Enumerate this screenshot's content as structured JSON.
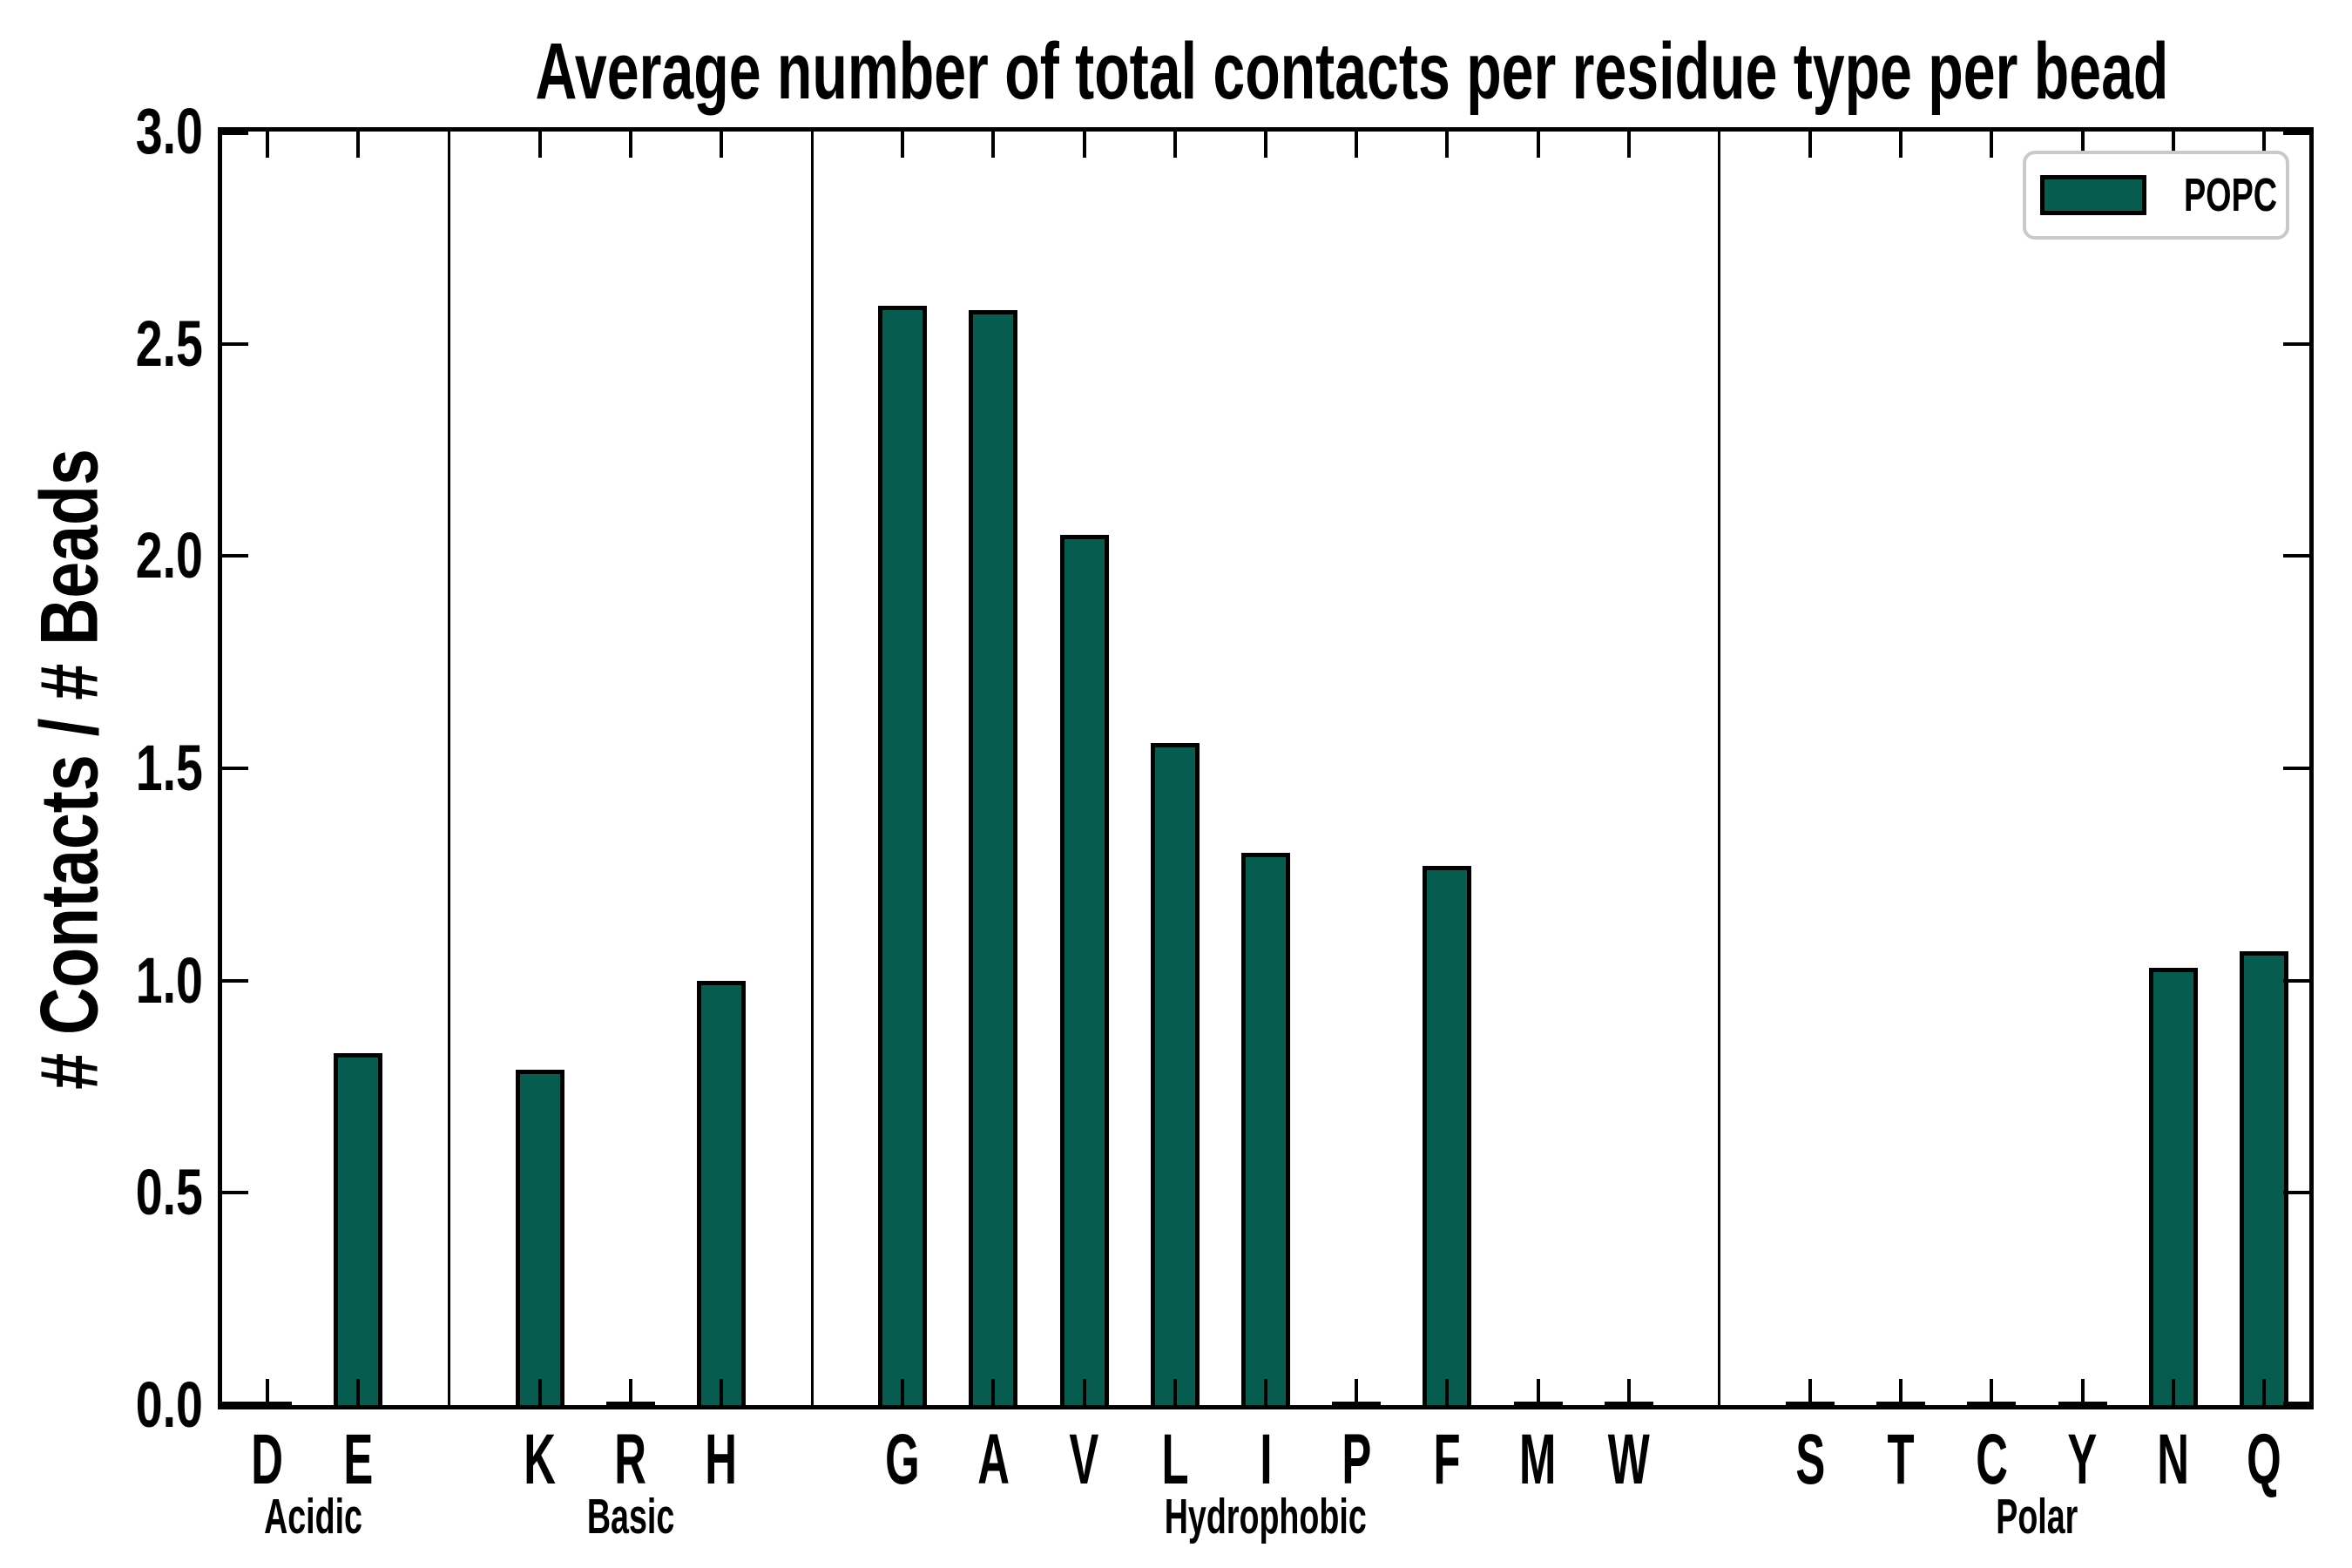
{
  "chart_data": {
    "type": "bar",
    "title": "Average number of total contacts per residue type per bead",
    "ylabel": "# Contacts / # Beads",
    "xlabel": "",
    "ylim": [
      0.0,
      3.0
    ],
    "ytick_labels": [
      "0.0",
      "0.5",
      "1.0",
      "1.5",
      "2.0",
      "2.5",
      "3.0"
    ],
    "grid": false,
    "legend_position": "upper right",
    "categories": [
      "D",
      "E",
      "K",
      "R",
      "H",
      "G",
      "A",
      "V",
      "L",
      "I",
      "P",
      "F",
      "M",
      "W",
      "S",
      "T",
      "C",
      "Y",
      "N",
      "Q"
    ],
    "series": [
      {
        "name": "POPC",
        "values": [
          0.005,
          0.83,
          0.79,
          0.005,
          1.0,
          2.59,
          2.58,
          2.05,
          1.56,
          1.3,
          0.005,
          1.27,
          0.005,
          0.005,
          0.005,
          0.005,
          0.005,
          0.005,
          1.03,
          1.07
        ]
      }
    ],
    "groups": [
      {
        "label": "Acidic",
        "categories": [
          "D",
          "E"
        ]
      },
      {
        "label": "Basic",
        "categories": [
          "K",
          "R",
          "H"
        ]
      },
      {
        "label": "Hydrophobic",
        "categories": [
          "G",
          "A",
          "V",
          "L",
          "I",
          "P",
          "F",
          "M",
          "W"
        ]
      },
      {
        "label": "Polar",
        "categories": [
          "S",
          "T",
          "C",
          "Y",
          "N",
          "Q"
        ]
      }
    ],
    "colors": {
      "bar_fill": "#065C4F",
      "bar_edge": "#000000",
      "axis": "#000000",
      "legend_border": "#c9c9c9",
      "background": "#ffffff"
    }
  }
}
